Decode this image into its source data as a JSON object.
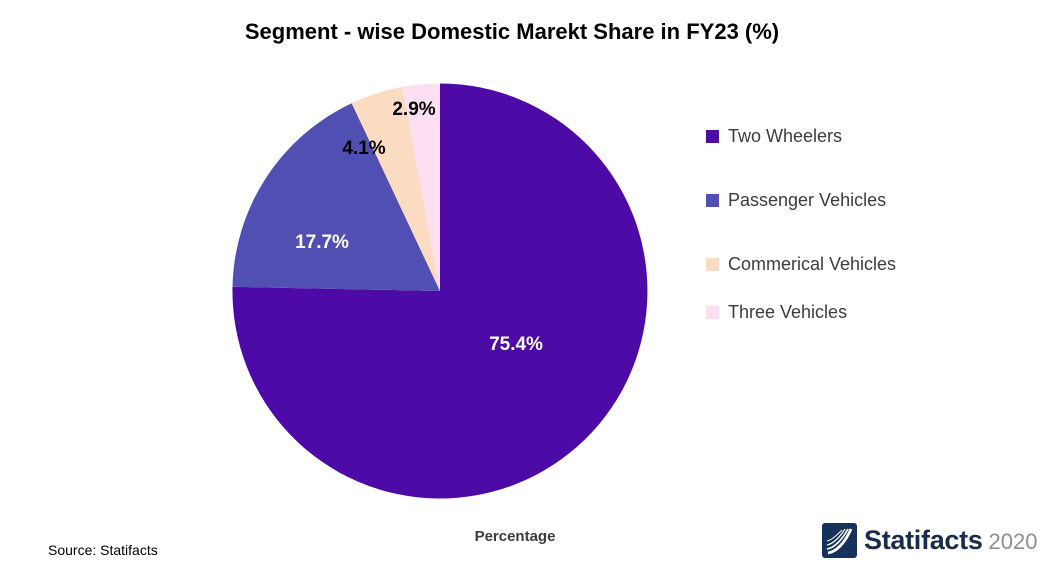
{
  "title": "Segment - wise Domestic Marekt Share in FY23 (%)",
  "chart_data": {
    "type": "pie",
    "title": "Segment - wise Domestic Marekt Share in FY23 (%)",
    "categories": [
      "Two Wheelers",
      "Passenger Vehicles",
      "Commerical Vehicles",
      "Three Vehicles"
    ],
    "values": [
      75.4,
      17.7,
      4.1,
      2.9
    ],
    "value_labels": [
      "75.4%",
      "17.7%",
      "4.1%",
      "2.9%"
    ],
    "colors": [
      "#4d0aa6",
      "#524fb2",
      "#fbdcc2",
      "#fcdff1"
    ],
    "value_label_colors": [
      "#ffffff",
      "#ffffff",
      "#000000",
      "#000000"
    ],
    "xlabel": "Percentage",
    "legend_position": "right",
    "start_angle_deg": 0,
    "direction": "clockwise",
    "unit": "%"
  },
  "footer": {
    "source": "Source: Statifacts",
    "brand_name": "Statifacts",
    "brand_year": "2020"
  }
}
